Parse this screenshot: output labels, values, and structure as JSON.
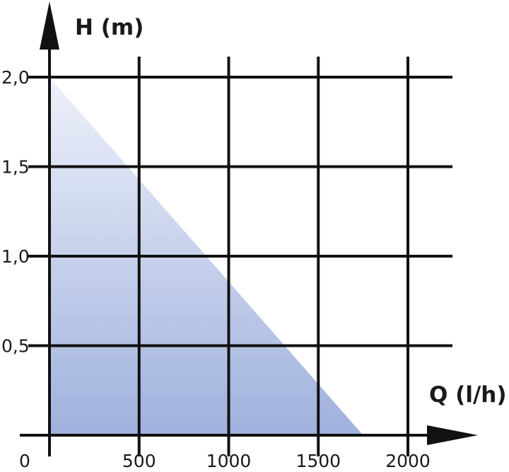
{
  "chart_data": {
    "type": "area",
    "title": "",
    "xlabel": "Q (l/h)",
    "ylabel": "H (m)",
    "x": [
      0,
      1750
    ],
    "series": [
      {
        "values": [
          2.0,
          0.0
        ]
      }
    ],
    "xlim": [
      0,
      2000
    ],
    "ylim": [
      0,
      2.0
    ],
    "x_ticks": [
      {
        "value": 0,
        "label": "0"
      },
      {
        "value": 500,
        "label": "500"
      },
      {
        "value": 1000,
        "label": "1000"
      },
      {
        "value": 1500,
        "label": "1500"
      },
      {
        "value": 2000,
        "label": "2000"
      }
    ],
    "y_ticks": [
      {
        "value": 0.5,
        "label": "0,5"
      },
      {
        "value": 1.0,
        "label": "1,0"
      },
      {
        "value": 1.5,
        "label": "1,5"
      },
      {
        "value": 2.0,
        "label": "2,0"
      }
    ],
    "grid": true,
    "fill_gradient": [
      "#eef1fa",
      "#9fb1dd"
    ]
  }
}
